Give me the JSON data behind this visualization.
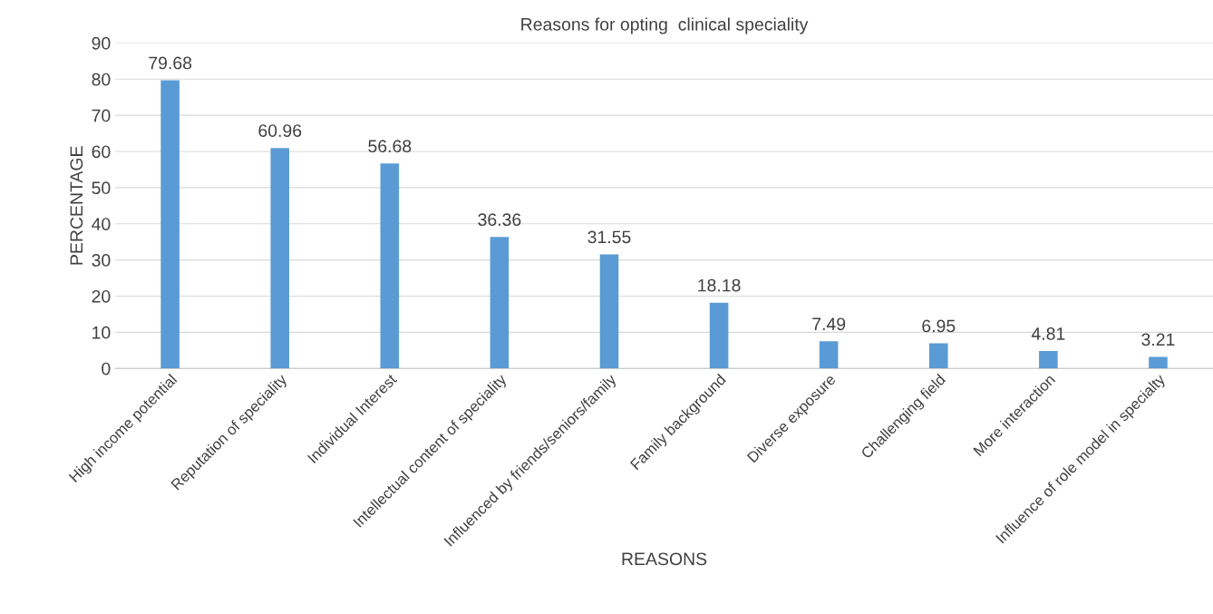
{
  "chart_data": {
    "type": "bar",
    "title": "Reasons for opting  clinical speciality",
    "xlabel": "REASONS",
    "ylabel": "PERCENTAGE",
    "categories": [
      "High income potential",
      "Reputation of speciality",
      "Individual Interest",
      "Intellectual content of speciality",
      "Influenced by friends/seniors/family",
      "Family background",
      "Diverse exposure",
      "Challenging field",
      "More interaction",
      "Influence of role model in specialty"
    ],
    "values": [
      79.68,
      60.96,
      56.68,
      36.36,
      31.55,
      18.18,
      7.49,
      6.95,
      4.81,
      3.21
    ],
    "color": "#5b9bd5",
    "data_labels": true,
    "ylim": [
      0,
      90
    ],
    "yticks": [
      0,
      10,
      20,
      30,
      40,
      50,
      60,
      70,
      80,
      90
    ],
    "grid": "y"
  }
}
